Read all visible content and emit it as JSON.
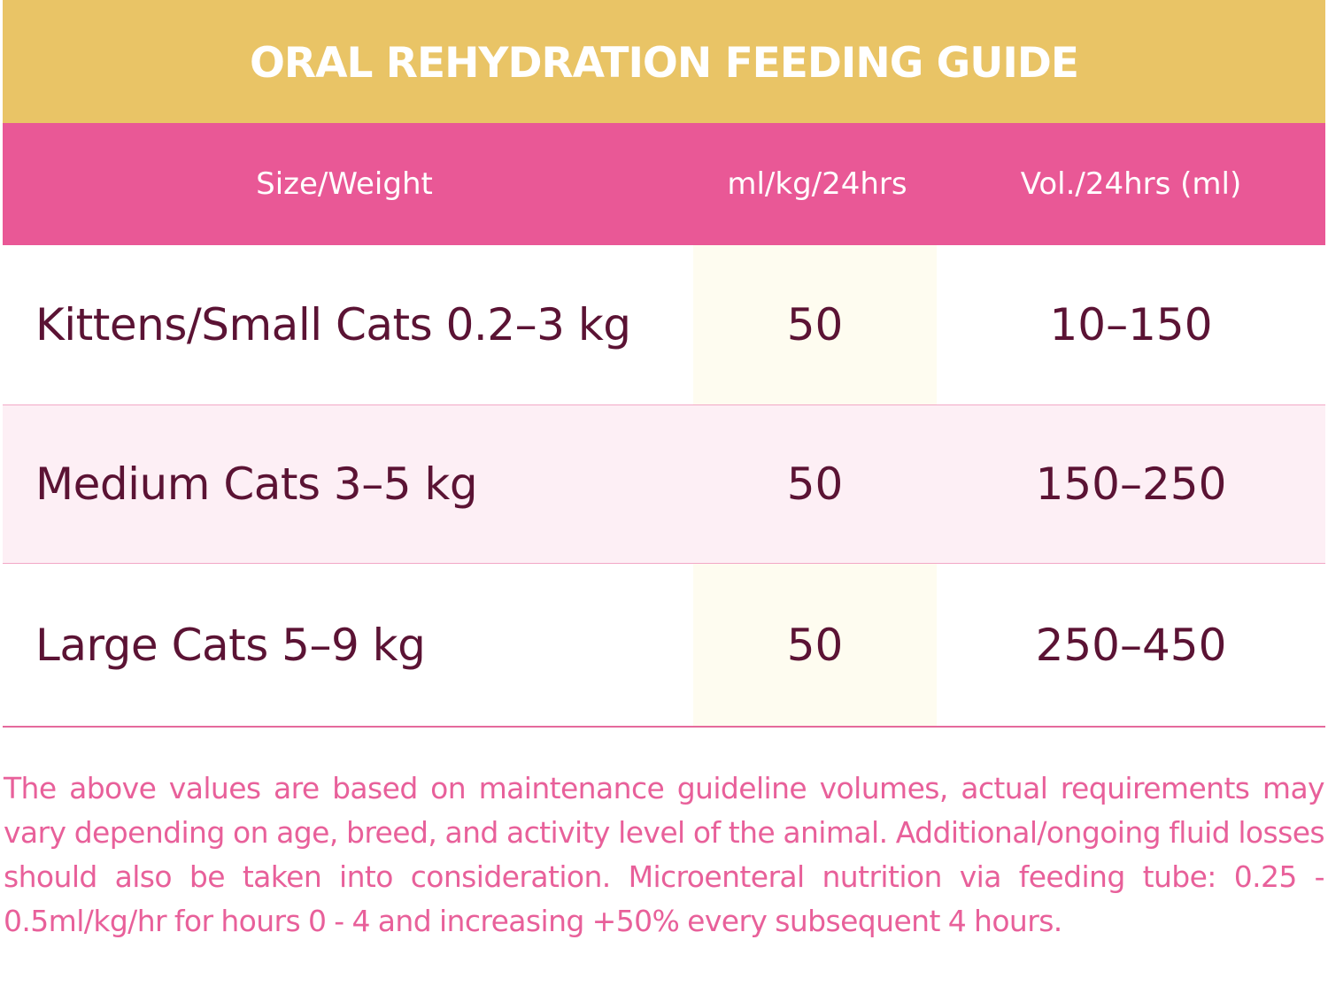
{
  "title": "ORAL REHYDRATION FEEDING GUIDE",
  "colors": {
    "title_bar": "#e9c466",
    "header_bar": "#e95896",
    "row_text": "#5b1334",
    "alt_row": "#fdeff5",
    "highlight_col": "#fefcf0",
    "footnote_text": "#e8609a"
  },
  "table": {
    "headers": [
      "Size/Weight",
      "ml/kg/24hrs",
      "Vol./24hrs (ml)"
    ],
    "rows": [
      {
        "size": "Kittens/Small Cats 0.2–3 kg",
        "rate": "50",
        "volume": "10–150"
      },
      {
        "size": "Medium Cats 3–5 kg",
        "rate": "50",
        "volume": "150–250"
      },
      {
        "size": "Large Cats 5–9 kg",
        "rate": "50",
        "volume": "250–450"
      }
    ]
  },
  "footnote": "The above values are based on maintenance guideline volumes, actual requirements may vary depending on age, breed, and activity level of the animal. Additional/ongoing fluid losses should also be taken into consideration. Microenteral nutrition via feeding tube: 0.25 - 0.5ml/kg/hr for hours 0 - 4 and increasing +50% every subsequent 4 hours."
}
